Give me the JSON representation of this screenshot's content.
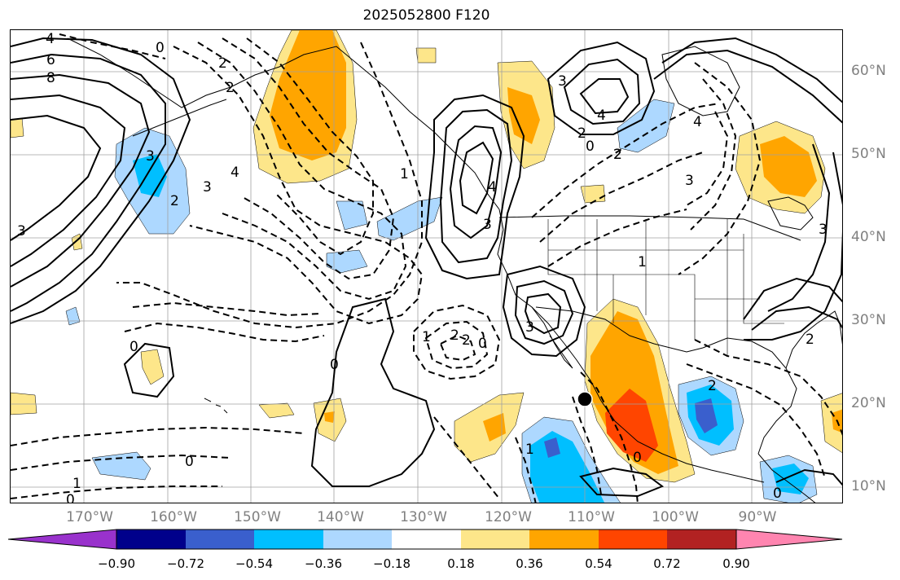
{
  "title": "2025052800 F120",
  "latitude_labels": [
    "60°N",
    "50°N",
    "40°N",
    "30°N",
    "20°N",
    "10°N"
  ],
  "longitude_labels": [
    "170°W",
    "160°W",
    "150°W",
    "140°W",
    "130°W",
    "120°W",
    "110°W",
    "100°W",
    "90°W"
  ],
  "colorbar": {
    "tick_labels": [
      "−0.90",
      "−0.72",
      "−0.54",
      "−0.36",
      "−0.18",
      "0.18",
      "0.36",
      "0.54",
      "0.72",
      "0.90"
    ],
    "colors": [
      "#9932cc",
      "#00008b",
      "#3a5fcd",
      "#00bfff",
      "#add8ff",
      "#ffffff",
      "#fde68a",
      "#ffa500",
      "#ff4500",
      "#b22222",
      "#ff85b0"
    ]
  },
  "contour_labels": {
    "solid": [
      "4",
      "6",
      "8",
      "0",
      "3",
      "2",
      "4",
      "3",
      "3",
      "2",
      "0",
      "2",
      "3",
      "4",
      "2",
      "3",
      "0",
      "0",
      "0"
    ],
    "dashed": [
      "2",
      "2",
      "4",
      "3",
      "3",
      "2",
      "1",
      "2",
      "1",
      "2",
      "0",
      "0",
      "3",
      "4",
      "2",
      "1",
      "0",
      "0",
      "1",
      "1"
    ]
  },
  "marker": {
    "type": "point",
    "lon": -110,
    "lat": 20.5
  }
}
